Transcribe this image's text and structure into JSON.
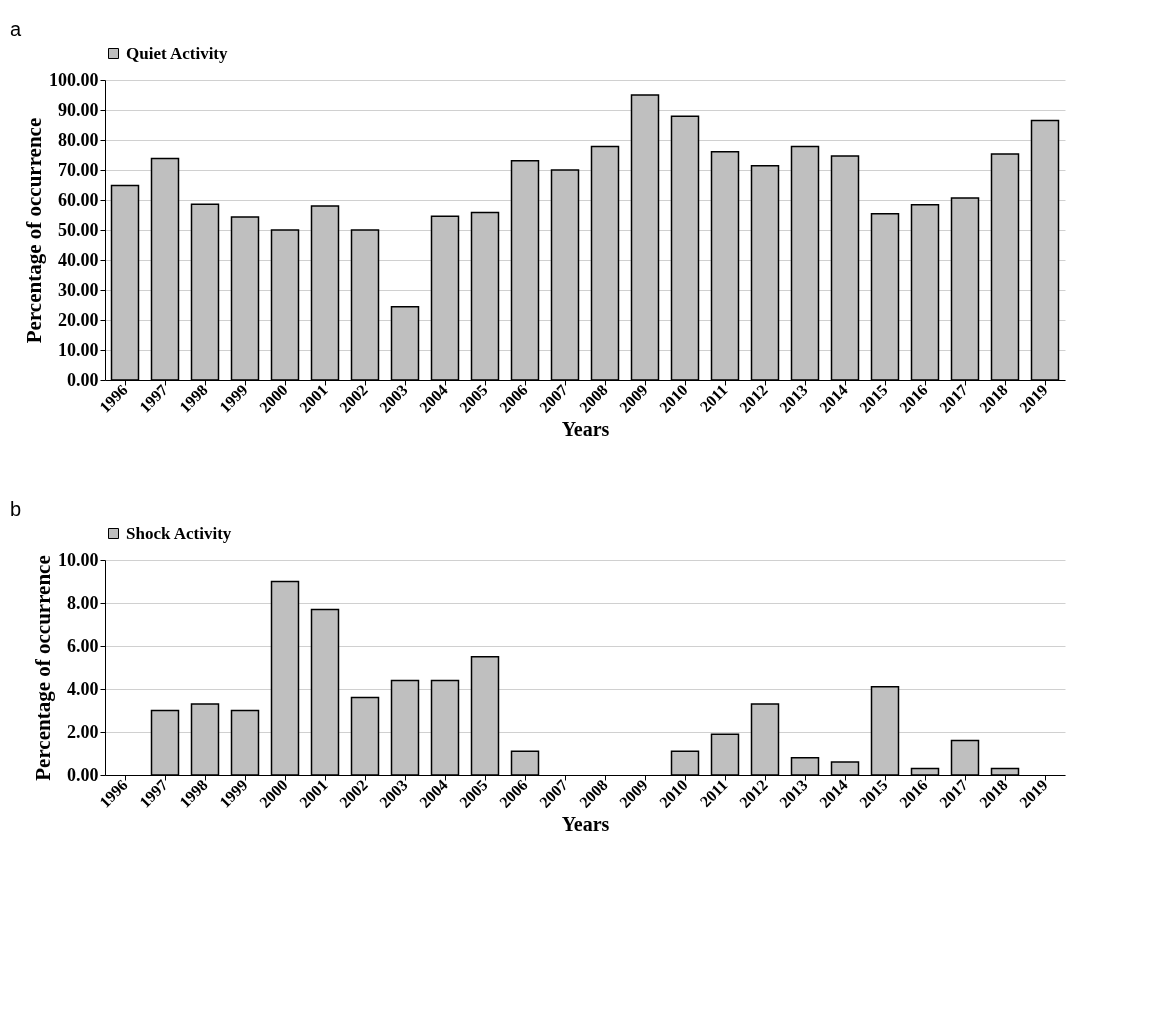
{
  "chart_data": [
    {
      "type": "bar",
      "xlabel": "Years",
      "ylabel": "Percentage of occurrence",
      "annotations": [
        "a"
      ],
      "legend": "top",
      "categories": [
        "1996",
        "1997",
        "1998",
        "1999",
        "2000",
        "2001",
        "2002",
        "2003",
        "2004",
        "2005",
        "2006",
        "2007",
        "2008",
        "2009",
        "2010",
        "2011",
        "2012",
        "2013",
        "2014",
        "2015",
        "2016",
        "2017",
        "2018",
        "2019"
      ],
      "series": [
        {
          "name": "Quiet Activity",
          "color": "#bfbfbf",
          "values": [
            64.8,
            73.8,
            58.6,
            54.3,
            50.0,
            58.0,
            50.0,
            24.4,
            54.6,
            55.8,
            73.1,
            70.0,
            77.8,
            95.0,
            87.9,
            76.1,
            71.4,
            77.8,
            74.7,
            55.4,
            58.4,
            60.7,
            75.3,
            86.5
          ]
        }
      ],
      "ylim": [
        0,
        100
      ],
      "yticks": [
        {
          "value": 0,
          "label": "0.00"
        },
        {
          "value": 10,
          "label": "10.00"
        },
        {
          "value": 20,
          "label": "20.00"
        },
        {
          "value": 30,
          "label": "30.00"
        },
        {
          "value": 40,
          "label": "40.00"
        },
        {
          "value": 50,
          "label": "50.00"
        },
        {
          "value": 60,
          "label": "60.00"
        },
        {
          "value": 70,
          "label": "70.00"
        },
        {
          "value": 80,
          "label": "80.00"
        },
        {
          "value": 90,
          "label": "90.00"
        },
        {
          "value": 100,
          "label": "100.00"
        }
      ],
      "grid": "y"
    },
    {
      "type": "bar",
      "xlabel": "Years",
      "ylabel": "Percentage of occurrence",
      "annotations": [
        "b"
      ],
      "legend": "top",
      "categories": [
        "1996",
        "1997",
        "1998",
        "1999",
        "2000",
        "2001",
        "2002",
        "2003",
        "2004",
        "2005",
        "2006",
        "2007",
        "2008",
        "2009",
        "2010",
        "2011",
        "2012",
        "2013",
        "2014",
        "2015",
        "2016",
        "2017",
        "2018",
        "2019"
      ],
      "series": [
        {
          "name": "Shock Activity",
          "color": "#bfbfbf",
          "values": [
            0,
            3.0,
            3.3,
            3.0,
            9.0,
            7.7,
            3.6,
            4.4,
            4.4,
            5.5,
            1.1,
            0,
            0,
            0,
            1.1,
            1.9,
            3.3,
            0.8,
            0.6,
            4.1,
            0.3,
            1.6,
            0.3,
            0
          ]
        }
      ],
      "ylim": [
        0,
        10
      ],
      "yticks": [
        {
          "value": 0,
          "label": "0.00"
        },
        {
          "value": 2,
          "label": "2.00"
        },
        {
          "value": 4,
          "label": "4.00"
        },
        {
          "value": 6,
          "label": "6.00"
        },
        {
          "value": 8,
          "label": "8.00"
        },
        {
          "value": 10,
          "label": "10.00"
        }
      ],
      "grid": "y"
    }
  ]
}
